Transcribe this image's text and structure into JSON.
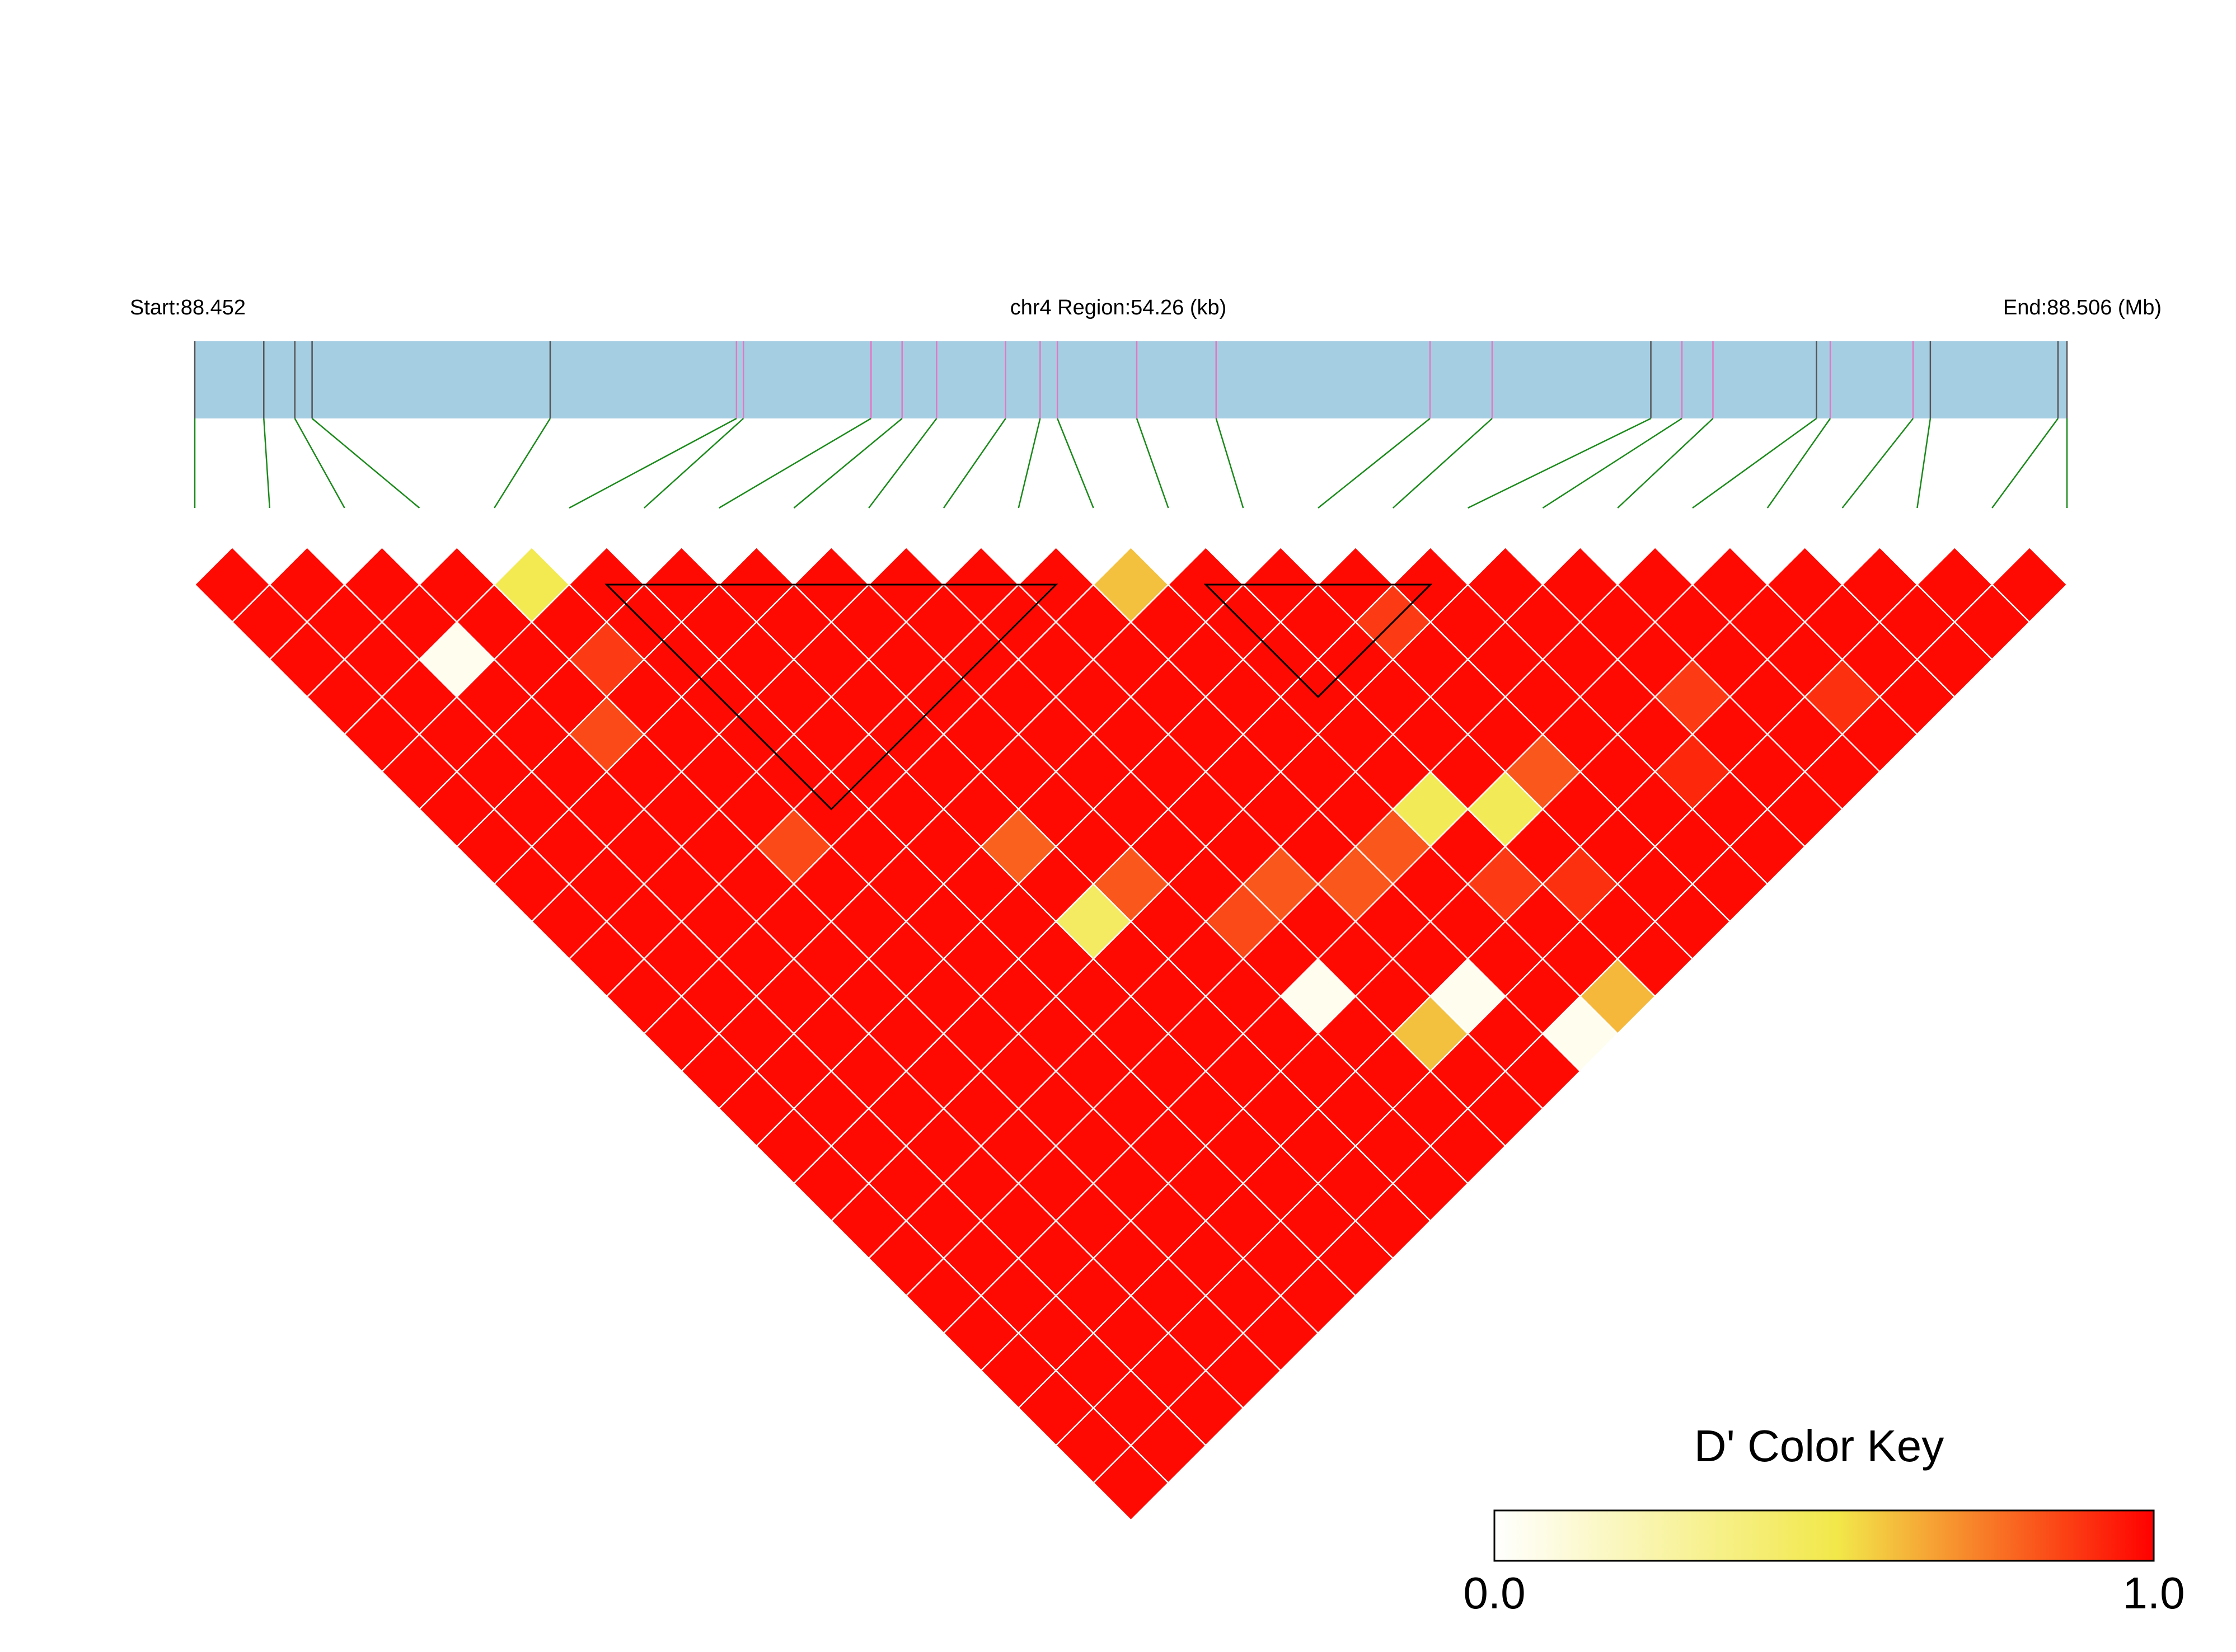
{
  "header": {
    "start_label": "Start:88.452",
    "region_label": "chr4 Region:54.26 (kb)",
    "end_label": "End:88.506 (Mb)"
  },
  "colors": {
    "track": "#a6cee3",
    "snp_line_dark": "#555555",
    "snp_line_pink": "#e377c2",
    "connector": "#1a8a1a",
    "cell_border": "#ffffff",
    "block_outline": "#000000",
    "key_low": "#ffffff",
    "key_mid": "#f2e84a",
    "key_high": "#ff0000"
  },
  "chart_data": {
    "type": "heatmap",
    "subtype": "LD triangle (D')",
    "chromosome": "chr4",
    "region_start_mb": 88.452,
    "region_end_mb": 88.506,
    "region_length_kb": 54.26,
    "snp_count": 26,
    "snp_positions_kb": [
      0.0,
      2.0,
      2.9,
      3.4,
      10.3,
      15.7,
      15.9,
      19.6,
      20.5,
      21.5,
      23.5,
      24.5,
      25.0,
      27.3,
      29.6,
      35.8,
      37.6,
      42.2,
      43.1,
      44.0,
      47.0,
      47.4,
      49.8,
      50.3,
      54.0,
      54.26
    ],
    "snp_marker_types": [
      "dark",
      "dark",
      "dark",
      "dark",
      "dark",
      "pink",
      "pink",
      "pink",
      "pink",
      "pink",
      "pink",
      "pink",
      "pink",
      "pink",
      "pink",
      "pink",
      "pink",
      "dark",
      "pink",
      "pink",
      "dark",
      "pink",
      "pink",
      "dark",
      "dark",
      "dark"
    ],
    "default_dprime": 0.98,
    "dprime_exceptions": [
      {
        "i": 4,
        "j": 5,
        "d": 0.5
      },
      {
        "i": 12,
        "j": 13,
        "d": 0.6
      },
      {
        "i": 2,
        "j": 5,
        "d": 0.05
      },
      {
        "i": 4,
        "j": 7,
        "d": 0.88
      },
      {
        "i": 3,
        "j": 8,
        "d": 0.85
      },
      {
        "i": 4,
        "j": 12,
        "d": 0.85
      },
      {
        "i": 7,
        "j": 15,
        "d": 0.8
      },
      {
        "i": 7,
        "j": 17,
        "d": 0.45
      },
      {
        "i": 8,
        "j": 17,
        "d": 0.82
      },
      {
        "i": 9,
        "j": 19,
        "d": 0.85
      },
      {
        "i": 10,
        "j": 19,
        "d": 0.82
      },
      {
        "i": 9,
        "j": 21,
        "d": 0.05
      },
      {
        "i": 11,
        "j": 20,
        "d": 0.82
      },
      {
        "i": 12,
        "j": 20,
        "d": 0.82
      },
      {
        "i": 13,
        "j": 20,
        "d": 0.48
      },
      {
        "i": 10,
        "j": 23,
        "d": 0.6
      },
      {
        "i": 11,
        "j": 23,
        "d": 0.05
      },
      {
        "i": 13,
        "j": 22,
        "d": 0.88
      },
      {
        "i": 14,
        "j": 21,
        "d": 0.48
      },
      {
        "i": 15,
        "j": 21,
        "d": 0.82
      },
      {
        "i": 12,
        "j": 25,
        "d": 0.05
      },
      {
        "i": 13,
        "j": 25,
        "d": 0.62
      },
      {
        "i": 14,
        "j": 23,
        "d": 0.9
      },
      {
        "i": 15,
        "j": 17,
        "d": 0.88
      },
      {
        "i": 18,
        "j": 22,
        "d": 0.88
      },
      {
        "i": 20,
        "j": 24,
        "d": 0.9
      },
      {
        "i": 17,
        "j": 23,
        "d": 0.92
      }
    ],
    "ld_blocks": [
      [
        5,
        12
      ],
      [
        13,
        17
      ],
      [
        20,
        21
      ],
      [
        23,
        24
      ]
    ],
    "color_key": {
      "title": "D' Color Key",
      "min_label": "0.0",
      "max_label": "1.0",
      "range": [
        0.0,
        1.0
      ]
    }
  }
}
